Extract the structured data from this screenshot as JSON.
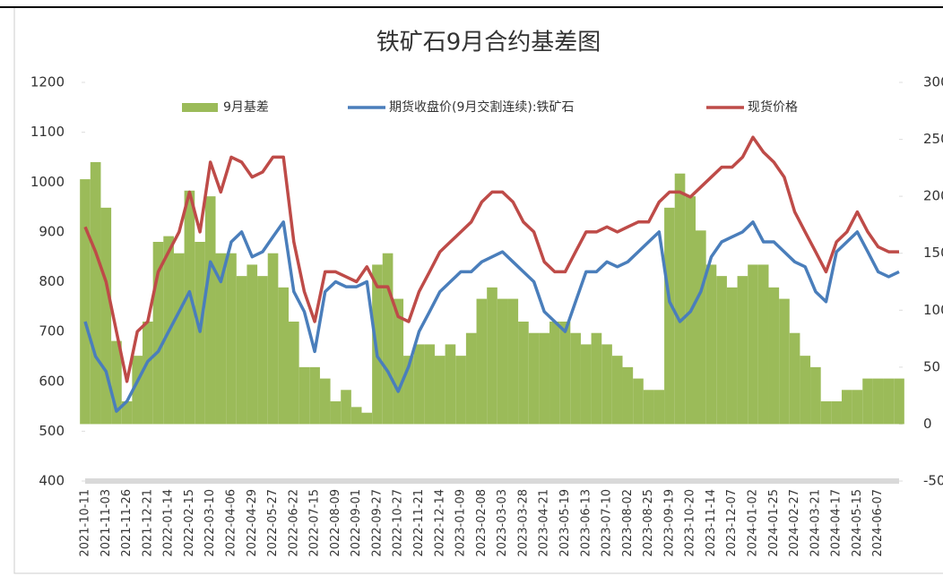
{
  "chart_data": {
    "type": "combo",
    "title": "铁矿石9月合约基差图",
    "categories": [
      "2021-10-11",
      null,
      "2021-11-03",
      null,
      "2021-11-26",
      null,
      "2021-12-21",
      null,
      "2022-01-14",
      null,
      "2022-02-15",
      null,
      "2022-03-10",
      null,
      "2022-04-06",
      null,
      "2022-04-29",
      null,
      "2022-05-27",
      null,
      "2022-06-22",
      null,
      "2022-07-15",
      null,
      "2022-08-09",
      null,
      "2022-09-01",
      null,
      "2022-09-27",
      null,
      "2022-10-27",
      null,
      "2022-11-21",
      null,
      "2022-12-14",
      null,
      "2023-01-09",
      null,
      "2023-02-08",
      null,
      "2023-03-03",
      null,
      "2023-03-28",
      null,
      "2023-04-21",
      null,
      "2023-05-19",
      null,
      "2023-06-13",
      null,
      "2023-07-10",
      null,
      "2023-08-02",
      null,
      "2023-08-25",
      null,
      "2023-09-19",
      null,
      "2023-10-20",
      null,
      "2023-11-14",
      null,
      "2023-12-07",
      null,
      "2024-01-02",
      null,
      "2024-01-25",
      null,
      "2024-02-27",
      null,
      "2024-03-21",
      null,
      "2024-04-17",
      null,
      "2024-05-15",
      null,
      "2024-06-07",
      null,
      null
    ],
    "series": [
      {
        "name": "9月基差",
        "type": "bar",
        "axis": "y2",
        "color": "#9bbb59",
        "values": [
          215,
          230,
          190,
          73,
          20,
          60,
          90,
          160,
          165,
          150,
          205,
          160,
          200,
          150,
          150,
          130,
          140,
          130,
          150,
          120,
          90,
          50,
          50,
          40,
          20,
          30,
          15,
          10,
          140,
          150,
          110,
          60,
          70,
          70,
          60,
          70,
          60,
          80,
          110,
          120,
          110,
          110,
          90,
          80,
          80,
          90,
          90,
          80,
          70,
          80,
          70,
          60,
          50,
          40,
          30,
          30,
          190,
          220,
          200,
          170,
          140,
          130,
          120,
          130,
          140,
          140,
          120,
          110,
          80,
          60,
          50,
          20,
          20,
          30,
          30,
          40,
          40,
          40,
          40
        ]
      },
      {
        "name": "期货收盘价(9月交割连续):铁矿石",
        "type": "line",
        "color": "#4a7ebb",
        "values": [
          720,
          650,
          620,
          540,
          560,
          600,
          640,
          660,
          700,
          740,
          780,
          700,
          840,
          800,
          880,
          900,
          850,
          860,
          890,
          920,
          780,
          740,
          660,
          780,
          800,
          790,
          790,
          800,
          650,
          620,
          580,
          630,
          700,
          740,
          780,
          800,
          820,
          820,
          840,
          850,
          860,
          840,
          820,
          800,
          740,
          720,
          700,
          760,
          820,
          820,
          840,
          830,
          840,
          860,
          880,
          900,
          760,
          720,
          740,
          780,
          850,
          880,
          890,
          900,
          920,
          880,
          880,
          860,
          840,
          830,
          780,
          760,
          860,
          880,
          900,
          860,
          820,
          810,
          820
        ]
      },
      {
        "name": "现货价格",
        "type": "line",
        "color": "#be4b48",
        "values": [
          910,
          860,
          800,
          700,
          600,
          700,
          720,
          820,
          860,
          900,
          980,
          900,
          1040,
          980,
          1050,
          1040,
          1010,
          1020,
          1050,
          1050,
          880,
          780,
          720,
          820,
          820,
          810,
          800,
          830,
          790,
          790,
          730,
          720,
          780,
          820,
          860,
          880,
          900,
          920,
          960,
          980,
          980,
          960,
          920,
          900,
          840,
          820,
          820,
          860,
          900,
          900,
          910,
          900,
          910,
          920,
          920,
          960,
          980,
          980,
          970,
          990,
          1010,
          1030,
          1030,
          1050,
          1090,
          1060,
          1040,
          1010,
          940,
          900,
          860,
          820,
          880,
          900,
          940,
          900,
          870,
          860,
          860
        ]
      }
    ],
    "ylim": [
      400,
      1200
    ],
    "yticks": [
      400,
      500,
      600,
      700,
      800,
      900,
      1000,
      1100,
      1200
    ],
    "y2lim": [
      -50,
      300
    ],
    "y2ticks": [
      -50,
      0,
      50,
      100,
      150,
      200,
      250,
      300
    ],
    "grid": false,
    "legend": "top"
  }
}
